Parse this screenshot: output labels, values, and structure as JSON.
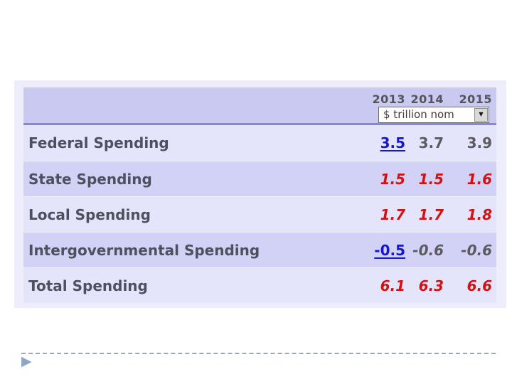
{
  "table": {
    "years": [
      "2013",
      "2014",
      "2015"
    ],
    "unit_selector": {
      "value": "$ trillion nom"
    },
    "rows": [
      {
        "label": "Federal Spending",
        "values": [
          {
            "text": "3.5",
            "cls": "val blue"
          },
          {
            "text": "3.7",
            "cls": "val gray"
          },
          {
            "text": "3.9",
            "cls": "val gray"
          }
        ]
      },
      {
        "label": "State Spending",
        "values": [
          {
            "text": "1.5",
            "cls": "val red"
          },
          {
            "text": "1.5",
            "cls": "val red"
          },
          {
            "text": "1.6",
            "cls": "val red"
          }
        ]
      },
      {
        "label": "Local Spending",
        "values": [
          {
            "text": "1.7",
            "cls": "val red"
          },
          {
            "text": "1.7",
            "cls": "val red"
          },
          {
            "text": "1.8",
            "cls": "val red"
          }
        ]
      },
      {
        "label": "Intergovernmental Spending",
        "values": [
          {
            "text": "-0.5",
            "cls": "val blue"
          },
          {
            "text": "-0.6",
            "cls": "val gray-i"
          },
          {
            "text": "-0.6",
            "cls": "val gray-i"
          }
        ]
      },
      {
        "label": "Total Spending",
        "values": [
          {
            "text": "6.1",
            "cls": "val red"
          },
          {
            "text": "6.3",
            "cls": "val red"
          },
          {
            "text": "6.6",
            "cls": "val red"
          }
        ]
      }
    ]
  },
  "icons": {
    "dropdown_arrow": "▼",
    "slide_bullet": "▶"
  },
  "colors": {
    "panel_bg": "#ededfb",
    "header_band": "#c9c9f2",
    "header_separator": "#8888cc",
    "row_light": "#e4e4fb",
    "row_dark": "#d2d2f6",
    "value_blue": "#1717d0",
    "value_red": "#d21212",
    "value_gray": "#5a5a60",
    "label_text": "#4e5060"
  }
}
